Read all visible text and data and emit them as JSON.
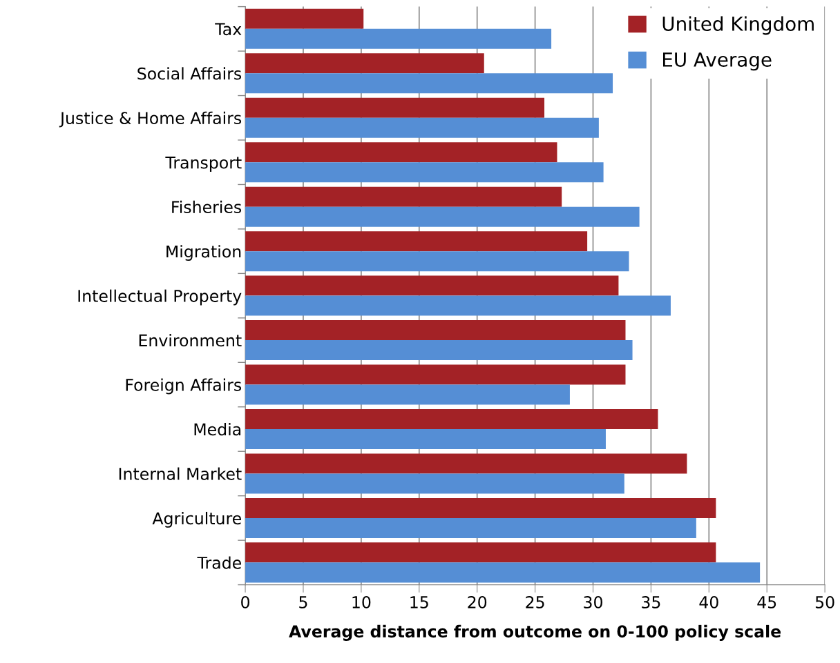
{
  "chart_data": {
    "type": "bar",
    "orientation": "horizontal",
    "xlabel": "Average distance from outcome on 0-100 policy scale",
    "categories": [
      "Tax",
      "Social Affairs",
      "Justice & Home Affairs",
      "Transport",
      "Fisheries",
      "Migration",
      "Intellectual Property",
      "Environment",
      "Foreign Affairs",
      "Media",
      "Internal Market",
      "Agriculture",
      "Trade"
    ],
    "series": [
      {
        "name": "United Kingdom",
        "color": "#a32226",
        "values": [
          10.2,
          20.6,
          25.8,
          26.9,
          27.3,
          29.5,
          32.2,
          32.8,
          32.8,
          35.6,
          38.1,
          40.6,
          40.6
        ]
      },
      {
        "name": "EU Average",
        "color": "#558ed5",
        "values": [
          26.4,
          31.7,
          30.5,
          30.9,
          34.0,
          33.1,
          36.7,
          33.4,
          28.0,
          31.1,
          32.7,
          38.9,
          44.4
        ]
      }
    ],
    "xlim": [
      0,
      50
    ],
    "xticks": [
      0,
      5,
      10,
      15,
      20,
      25,
      30,
      35,
      40,
      45,
      50
    ],
    "grid": "x",
    "legend": "top right"
  }
}
